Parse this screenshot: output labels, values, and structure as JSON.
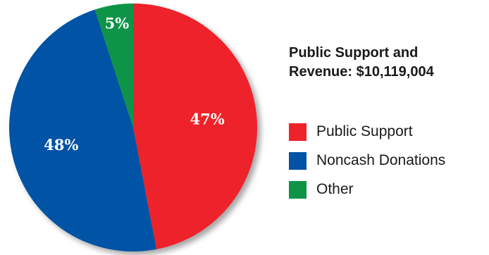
{
  "chart_data": {
    "type": "pie",
    "title_lines": [
      "Public Support and",
      "Revenue: $10,119,004"
    ],
    "slices": [
      {
        "name": "Public Support",
        "value": 47,
        "label": "47%",
        "color": "#ee2229"
      },
      {
        "name": "Noncash Donations",
        "value": 48,
        "label": "48%",
        "color": "#0052a5"
      },
      {
        "name": "Other",
        "value": 5,
        "label": "5%",
        "color": "#0d9447"
      }
    ],
    "legend_position": "right"
  }
}
